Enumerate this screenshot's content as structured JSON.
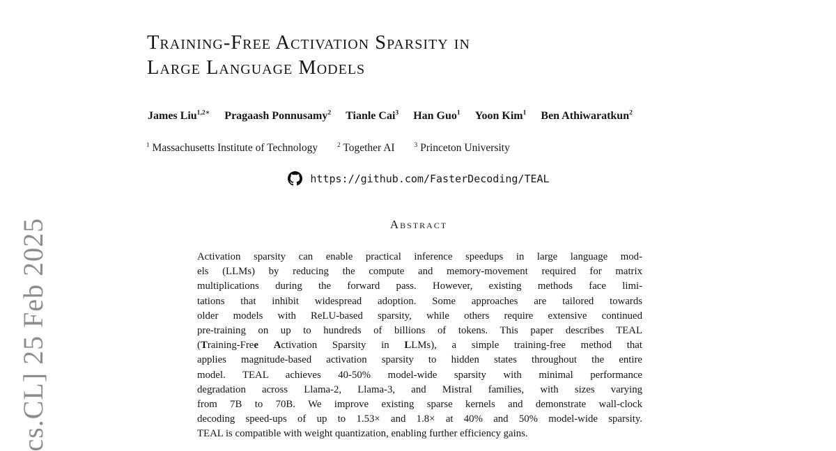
{
  "page": {
    "background": "#ffffff",
    "text_color": "#161616"
  },
  "watermark": {
    "text": "[cs.CL] 25 Feb 2025",
    "color": "#8d8d8d"
  },
  "title": {
    "line1": "Training-Free Activation Sparsity in",
    "line2": "Large Language Models"
  },
  "authors": [
    {
      "name": "James Liu",
      "sup": "1,2∗"
    },
    {
      "name": "Pragaash Ponnusamy",
      "sup": "2"
    },
    {
      "name": "Tianle Cai",
      "sup": "3"
    },
    {
      "name": "Han Guo",
      "sup": "1"
    },
    {
      "name": "Yoon Kim",
      "sup": "1"
    },
    {
      "name": "Ben Athiwaratkun",
      "sup": "2"
    }
  ],
  "affiliations": [
    {
      "sup": "1",
      "name": "Massachusetts Institute of Technology"
    },
    {
      "sup": "2",
      "name": "Together AI"
    },
    {
      "sup": "3",
      "name": "Princeton University"
    }
  ],
  "repo": {
    "icon": "github-icon",
    "url": "https://github.com/FasterDecoding/TEAL"
  },
  "abstract": {
    "heading": "Abstract",
    "lines": [
      "Activation sparsity can enable practical inference speedups in large language mod-",
      "els (LLMs) by reducing the compute and memory-movement required for matrix",
      "multiplications during the forward pass. However, existing methods face limi-",
      "tations that inhibit widespread adoption. Some approaches are tailored towards",
      "older models with ReLU-based sparsity, while others require extensive continued",
      "pre-training on up to hundreds of billions of tokens. This paper describes TEAL",
      [
        {
          "t": "(",
          "b": false
        },
        {
          "t": "T",
          "b": true
        },
        {
          "t": "raining-Fre",
          "b": false
        },
        {
          "t": "e",
          "b": true
        },
        {
          "t": " ",
          "b": false
        },
        {
          "t": "A",
          "b": true
        },
        {
          "t": "ctivation Sparsity in ",
          "b": false
        },
        {
          "t": "L",
          "b": true
        },
        {
          "t": "LMs), a simple training-free method that",
          "b": false
        }
      ],
      "applies magnitude-based activation sparsity to hidden states throughout the entire",
      "model. TEAL achieves 40-50% model-wide sparsity with minimal performance",
      "degradation across Llama-2, Llama-3, and Mistral families, with sizes varying",
      "from 7B to 70B. We improve existing sparse kernels and demonstrate wall-clock",
      "decoding speed-ups of up to 1.53× and 1.8× at 40% and 50% model-wide sparsity.",
      "TEAL is compatible with weight quantization, enabling further efficiency gains."
    ]
  }
}
